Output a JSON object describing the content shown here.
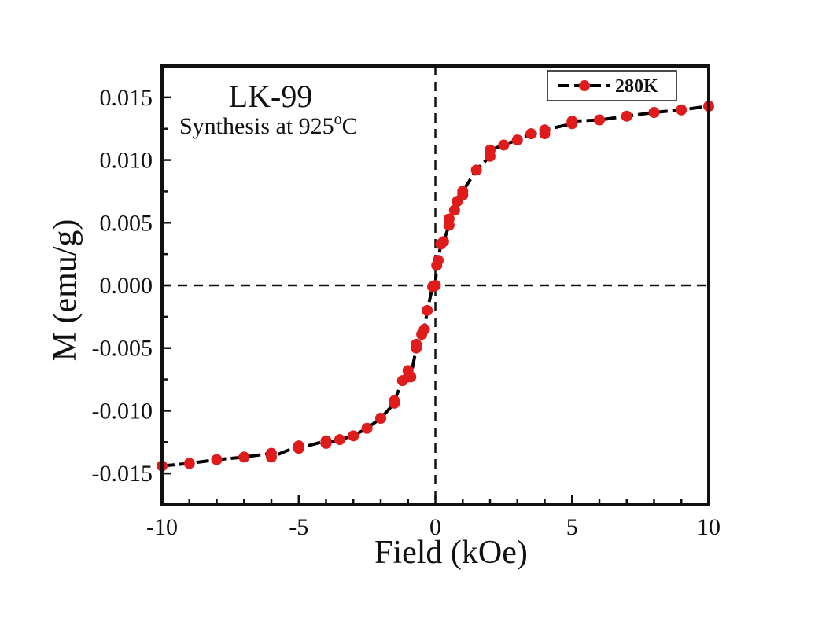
{
  "chart_data": {
    "type": "scatter",
    "xlabel": "Field (kOe)",
    "ylabel": "M (emu/g)",
    "xlim": [
      -10,
      10
    ],
    "ylim": [
      -0.0175,
      0.0175
    ],
    "xticks": [
      -10,
      -5,
      0,
      5,
      10
    ],
    "xtick_labels": [
      "-10",
      "-5",
      "0",
      "5",
      "10"
    ],
    "yticks": [
      -0.015,
      -0.01,
      -0.005,
      0.0,
      0.005,
      0.01,
      0.015
    ],
    "ytick_labels": [
      "-0.015",
      "-0.010",
      "-0.005",
      "0.000",
      "0.005",
      "0.010",
      "0.015"
    ],
    "grid": false,
    "legend_position": "top-right",
    "reference_lines": {
      "x": 0,
      "y": 0,
      "style": "dashed"
    },
    "annotations": {
      "sample": "LK-99",
      "synthesis_prefix": "Synthesis at 925",
      "synthesis_sup": "o",
      "synthesis_suffix": "C"
    },
    "series": [
      {
        "name": "280K",
        "color": "#e01b1b",
        "line_color": "#000000",
        "line_style": "dash",
        "marker": "circle",
        "x": [
          -10,
          -9,
          -8,
          -7,
          -6,
          -6,
          -5,
          -5,
          -4,
          -4,
          -3.5,
          -3,
          -2.5,
          -2,
          -1.5,
          -1.5,
          -1.2,
          -1.0,
          -1.0,
          -0.9,
          -0.7,
          -0.7,
          -0.5,
          -0.4,
          -0.3,
          -0.1,
          0,
          0.05,
          0.1,
          0.2,
          0.3,
          0.5,
          0.5,
          0.7,
          0.8,
          1.0,
          1.0,
          1.5,
          2.0,
          2.0,
          2.5,
          3.0,
          3.5,
          4.0,
          4.0,
          5.0,
          5.0,
          6.0,
          7.0,
          8.0,
          9.0,
          10.0
        ],
        "y": [
          -0.0144,
          -0.0142,
          -0.0139,
          -0.0137,
          -0.0134,
          -0.0137,
          -0.0128,
          -0.013,
          -0.0124,
          -0.0126,
          -0.0123,
          -0.012,
          -0.0114,
          -0.0106,
          -0.0094,
          -0.0092,
          -0.0076,
          -0.0068,
          -0.0073,
          -0.0073,
          -0.005,
          -0.0047,
          -0.0039,
          -0.0035,
          -0.002,
          -0.0001,
          0.0,
          0.0016,
          0.002,
          0.0033,
          0.0035,
          0.0048,
          0.0053,
          0.006,
          0.0067,
          0.0072,
          0.0075,
          0.0092,
          0.0103,
          0.0108,
          0.0112,
          0.0116,
          0.0121,
          0.0121,
          0.0124,
          0.0129,
          0.0131,
          0.0132,
          0.0135,
          0.0138,
          0.014,
          0.0143
        ]
      }
    ]
  }
}
